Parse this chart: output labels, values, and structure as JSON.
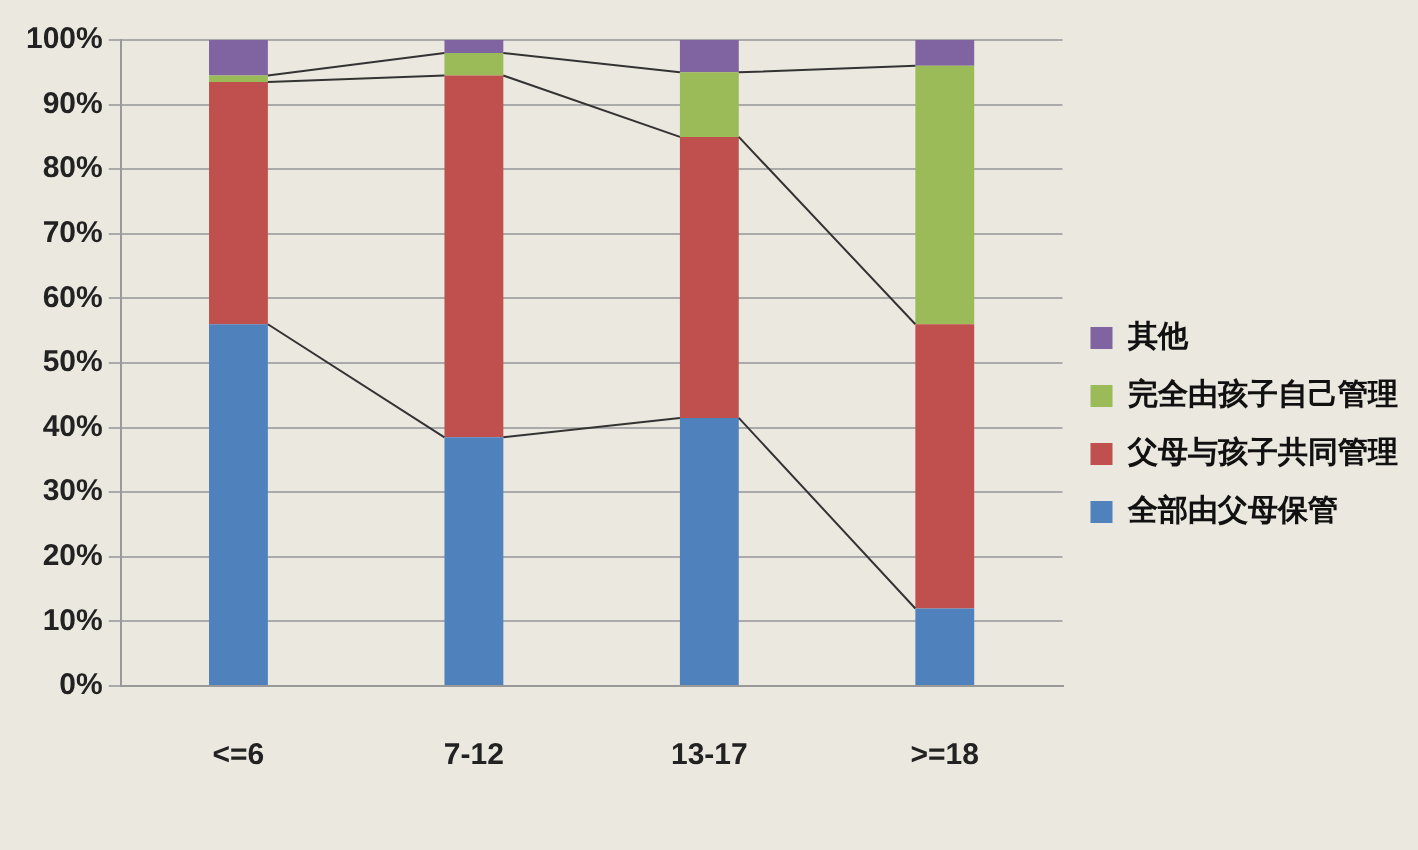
{
  "chart_data": {
    "type": "bar",
    "stacked": true,
    "categories": [
      "<=6",
      "7-12",
      "13-17",
      ">=18"
    ],
    "series": [
      {
        "name": "全部由父母保管",
        "color": "#4f81bd",
        "values": [
          56,
          38.5,
          41.5,
          12
        ]
      },
      {
        "name": "父母与孩子共同管理",
        "color": "#c0504d",
        "values": [
          37.5,
          56,
          43.5,
          44
        ]
      },
      {
        "name": "完全由孩子自己管理",
        "color": "#9bbb59",
        "values": [
          1,
          3.5,
          10,
          40
        ]
      },
      {
        "name": "其他",
        "color": "#8064a2",
        "values": [
          5.5,
          2,
          5,
          4
        ]
      }
    ],
    "ylim": [
      0,
      100
    ],
    "yticks": [
      {
        "value": 0,
        "label": "0%"
      },
      {
        "value": 10,
        "label": "10%"
      },
      {
        "value": 20,
        "label": "20%"
      },
      {
        "value": 30,
        "label": "30%"
      },
      {
        "value": 40,
        "label": "40%"
      },
      {
        "value": 50,
        "label": "50%"
      },
      {
        "value": 60,
        "label": "60%"
      },
      {
        "value": 70,
        "label": "70%"
      },
      {
        "value": 80,
        "label": "80%"
      },
      {
        "value": 90,
        "label": "90%"
      },
      {
        "value": 100,
        "label": "100%"
      }
    ],
    "grid": "y",
    "legend": "right"
  }
}
